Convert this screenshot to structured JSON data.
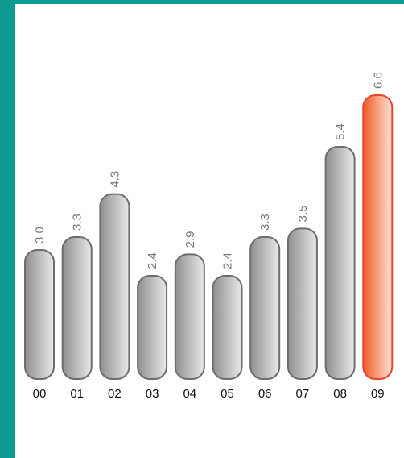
{
  "colors": {
    "frame": "#0e9a91",
    "bar_fill_dark": "#8f8f8f",
    "bar_fill_light": "#e9e9e9",
    "bar_stroke": "#6d6d6d",
    "highlight_fill_dark": "#f05a28",
    "highlight_fill_light": "#ffe3d6",
    "highlight_stroke": "#e8452a"
  },
  "chart_data": {
    "type": "bar",
    "categories": [
      "00",
      "01",
      "02",
      "03",
      "04",
      "05",
      "06",
      "07",
      "08",
      "09"
    ],
    "values": [
      3.0,
      3.3,
      4.3,
      2.4,
      2.9,
      2.4,
      3.3,
      3.5,
      5.4,
      6.6
    ],
    "value_labels": [
      "3.0",
      "3.3",
      "4.3",
      "2.4",
      "2.9",
      "2.4",
      "3.3",
      "3.5",
      "5.4",
      "6.6"
    ],
    "highlight_index": 9,
    "ylim": [
      0,
      6.6
    ],
    "title": "",
    "xlabel": "",
    "ylabel": "",
    "grid": false,
    "legend": "none"
  }
}
